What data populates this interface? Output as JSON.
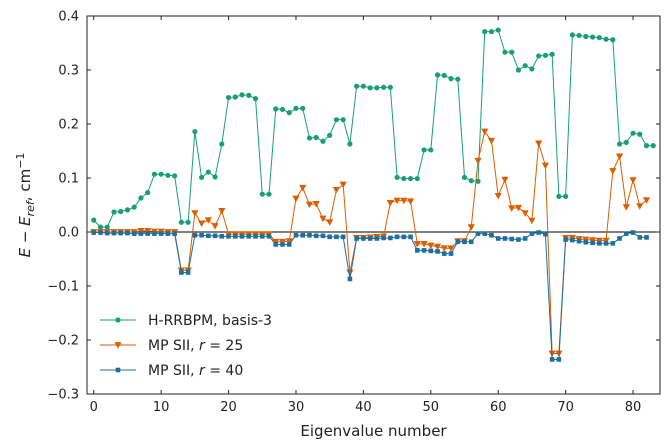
{
  "chart_data": {
    "type": "line",
    "xlabel": "Eigenvalue number",
    "ylabel": "E − E_ref, cm⁻¹",
    "xlim": [
      -1,
      84
    ],
    "ylim": [
      -0.3,
      0.4
    ],
    "xticks": [
      0,
      10,
      20,
      30,
      40,
      50,
      60,
      70,
      80
    ],
    "yticks": [
      -0.3,
      -0.2,
      -0.1,
      0.0,
      0.1,
      0.2,
      0.3,
      0.4
    ],
    "xtick_labels": [
      "0",
      "10",
      "20",
      "30",
      "40",
      "50",
      "60",
      "70",
      "80"
    ],
    "ytick_labels": [
      "−0.3",
      "−0.2",
      "−0.1",
      "0.0",
      "0.1",
      "0.2",
      "0.3",
      "0.4"
    ],
    "grid": false,
    "legend_position": "lower-left",
    "reference_line_y": 0,
    "series": [
      {
        "name": "H-RRBPM, basis-3",
        "color": "#1a9e77",
        "marker": "circle",
        "values": [
          0.022,
          0.009,
          0.009,
          0.037,
          0.038,
          0.041,
          0.046,
          0.063,
          0.073,
          0.107,
          0.107,
          0.105,
          0.104,
          0.018,
          0.018,
          0.186,
          0.101,
          0.111,
          0.102,
          0.163,
          0.249,
          0.25,
          0.254,
          0.253,
          0.247,
          0.07,
          0.07,
          0.228,
          0.227,
          0.221,
          0.229,
          0.229,
          0.174,
          0.175,
          0.168,
          0.179,
          0.208,
          0.208,
          0.163,
          0.27,
          0.27,
          0.267,
          0.267,
          0.268,
          0.268,
          0.101,
          0.099,
          0.099,
          0.099,
          0.152,
          0.152,
          0.291,
          0.29,
          0.284,
          0.283,
          0.101,
          0.095,
          0.094,
          0.371,
          0.371,
          0.374,
          0.333,
          0.333,
          0.3,
          0.308,
          0.302,
          0.326,
          0.327,
          0.329,
          0.066,
          0.066,
          0.365,
          0.364,
          0.362,
          0.361,
          0.36,
          0.357,
          0.356,
          0.163,
          0.166,
          0.183,
          0.181,
          0.16,
          0.16
        ]
      },
      {
        "name": "MP SII, r = 25",
        "color": "#d95f02",
        "marker": "triangle-down",
        "values": [
          0.0,
          0.0,
          0.0,
          0.0,
          0.0,
          0.0,
          0.0,
          0.002,
          0.002,
          0.001,
          0.001,
          0.0,
          0.0,
          -0.071,
          -0.071,
          0.035,
          0.016,
          0.022,
          0.011,
          0.039,
          -0.004,
          -0.004,
          -0.004,
          -0.004,
          -0.004,
          -0.004,
          -0.004,
          -0.018,
          -0.018,
          -0.017,
          0.062,
          0.082,
          0.051,
          0.052,
          0.025,
          0.018,
          0.078,
          0.088,
          -0.075,
          -0.011,
          -0.011,
          -0.01,
          -0.009,
          -0.008,
          0.054,
          0.058,
          0.058,
          0.057,
          -0.022,
          -0.022,
          -0.025,
          -0.027,
          -0.03,
          -0.03,
          -0.017,
          -0.017,
          0.009,
          0.132,
          0.186,
          0.169,
          0.067,
          0.097,
          0.044,
          0.045,
          0.035,
          0.021,
          0.164,
          0.123,
          -0.225,
          -0.225,
          -0.011,
          -0.011,
          -0.013,
          -0.014,
          -0.015,
          -0.016,
          -0.016,
          0.113,
          0.14,
          0.046,
          0.096,
          0.048,
          0.059
        ]
      },
      {
        "name": "MP SII, r = 40",
        "color": "#1f6f9e",
        "marker": "square",
        "values": [
          -0.001,
          -0.001,
          -0.002,
          -0.002,
          -0.002,
          -0.002,
          -0.003,
          -0.003,
          -0.003,
          -0.003,
          -0.003,
          -0.003,
          -0.003,
          -0.075,
          -0.075,
          -0.006,
          -0.006,
          -0.007,
          -0.007,
          -0.008,
          -0.008,
          -0.008,
          -0.008,
          -0.008,
          -0.008,
          -0.008,
          -0.008,
          -0.023,
          -0.023,
          -0.023,
          -0.006,
          -0.006,
          -0.006,
          -0.007,
          -0.007,
          -0.009,
          -0.009,
          -0.009,
          -0.087,
          -0.012,
          -0.012,
          -0.012,
          -0.012,
          -0.011,
          -0.011,
          -0.009,
          -0.009,
          -0.009,
          -0.034,
          -0.034,
          -0.035,
          -0.036,
          -0.04,
          -0.04,
          -0.018,
          -0.018,
          -0.018,
          -0.003,
          -0.003,
          -0.006,
          -0.012,
          -0.012,
          -0.013,
          -0.014,
          -0.012,
          -0.003,
          -0.001,
          -0.004,
          -0.236,
          -0.236,
          -0.014,
          -0.015,
          -0.017,
          -0.019,
          -0.02,
          -0.021,
          -0.021,
          -0.021,
          -0.012,
          -0.003,
          -0.001,
          -0.01,
          -0.01
        ]
      }
    ]
  }
}
